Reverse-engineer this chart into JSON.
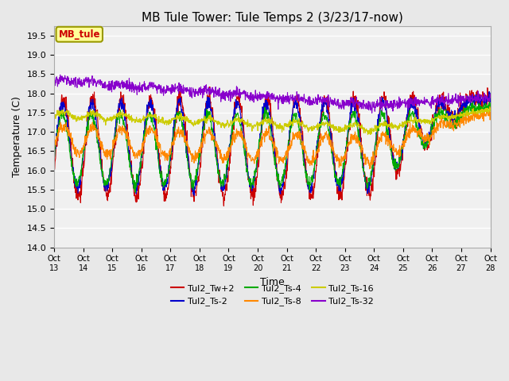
{
  "title": "MB Tule Tower: Tule Temps 2 (3/23/17-now)",
  "xlabel": "Time",
  "ylabel": "Temperature (C)",
  "ylim": [
    14.0,
    19.75
  ],
  "yticks": [
    14.0,
    14.5,
    15.0,
    15.5,
    16.0,
    16.5,
    17.0,
    17.5,
    18.0,
    18.5,
    19.0,
    19.5
  ],
  "xtick_labels": [
    "Oct 13",
    "Oct 14",
    "Oct 15",
    "Oct 16",
    "Oct 17",
    "Oct 18",
    "Oct 19",
    "Oct 20",
    "Oct 21",
    "Oct 22",
    "Oct 23",
    "Oct 24",
    "Oct 25",
    "Oct 26",
    "Oct 27",
    "Oct 28"
  ],
  "legend_label": "MB_tule",
  "series_names": [
    "Tul2_Tw+2",
    "Tul2_Ts-2",
    "Tul2_Ts-4",
    "Tul2_Ts-8",
    "Tul2_Ts-16",
    "Tul2_Ts-32"
  ],
  "series_colors": [
    "#cc0000",
    "#0000cc",
    "#00aa00",
    "#ff8800",
    "#cccc00",
    "#8800cc"
  ],
  "bg_color": "#e8e8e8",
  "plot_bg": "#f0f0f0",
  "grid_color": "#ffffff",
  "n_points": 1500,
  "title_fontsize": 11,
  "axis_fontsize": 9,
  "tick_fontsize": 8
}
